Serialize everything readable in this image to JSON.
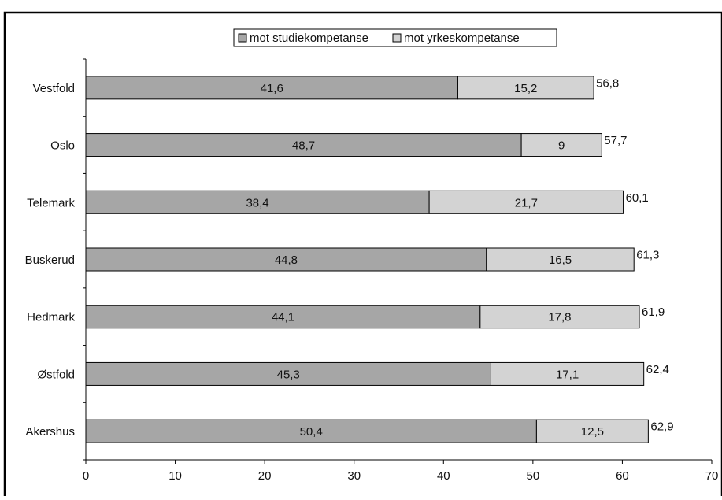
{
  "chart_data": {
    "type": "bar",
    "orientation": "horizontal",
    "stacked": true,
    "categories": [
      "Vestfold",
      "Oslo",
      "Telemark",
      "Buskerud",
      "Hedmark",
      "Østfold",
      "Akershus"
    ],
    "series": [
      {
        "name": "mot studiekompetanse",
        "color": "#a6a6a6",
        "values": [
          41.6,
          48.7,
          38.4,
          44.8,
          44.1,
          45.3,
          50.4
        ],
        "labels": [
          "41,6",
          "48,7",
          "38,4",
          "44,8",
          "44,1",
          "45,3",
          "50,4"
        ]
      },
      {
        "name": "mot yrkeskompetanse",
        "color": "#d3d3d3",
        "values": [
          15.2,
          9,
          21.7,
          16.5,
          17.8,
          17.1,
          12.5
        ],
        "labels": [
          "15,2",
          "9",
          "21,7",
          "16,5",
          "17,8",
          "17,1",
          "12,5"
        ]
      }
    ],
    "totals": [
      56.8,
      57.7,
      60.1,
      61.3,
      61.9,
      62.4,
      62.9
    ],
    "total_labels": [
      "56,8",
      "57,7",
      "60,1",
      "61,3",
      "61,9",
      "62,4",
      "62,9"
    ],
    "xlim": [
      0,
      70
    ],
    "xticks": [
      0,
      10,
      20,
      30,
      40,
      50,
      60,
      70
    ],
    "xtick_labels": [
      "0",
      "10",
      "20",
      "30",
      "40",
      "50",
      "60",
      "70"
    ],
    "grid": false,
    "legend_position": "top-center"
  }
}
